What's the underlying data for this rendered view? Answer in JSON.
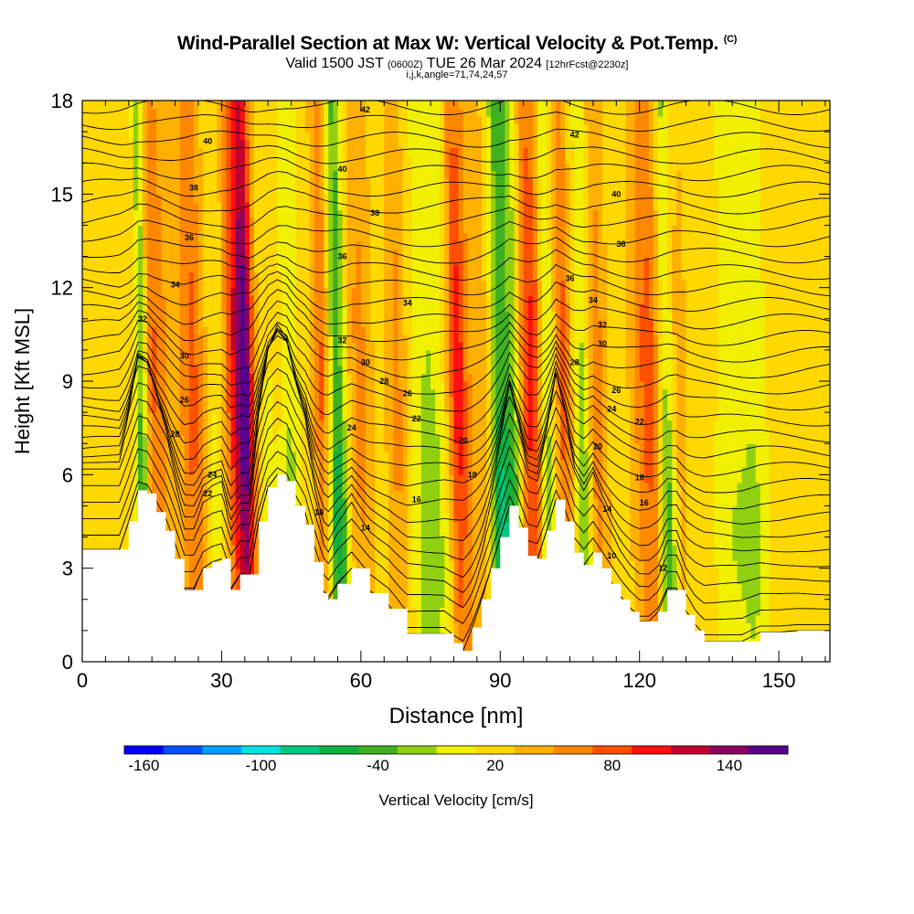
{
  "header": {
    "title": "Wind-Parallel Section at Max W: Vertical Velocity & Pot.Temp.",
    "title_unit": "(C)",
    "valid_prefix": "Valid 1500 JST",
    "valid_utc": "(0600Z)",
    "valid_date": "TUE 26 Mar 2024",
    "forecast": "[12hrFcst@2230z]",
    "indices": "i,j,k,angle=71,74,24,57"
  },
  "chart_data": {
    "type": "heatmap",
    "xlabel": "Distance [nm]",
    "ylabel": "Height [Kft MSL]",
    "xlim": [
      0,
      161
    ],
    "ylim": [
      0,
      18
    ],
    "x_ticks": [
      0,
      30,
      60,
      90,
      120,
      150
    ],
    "y_ticks": [
      0,
      3,
      6,
      9,
      12,
      15,
      18
    ],
    "colorbar": {
      "label": "Vertical Velocity [cm/s]",
      "ticks": [
        -160,
        -100,
        -40,
        20,
        80,
        140
      ],
      "range": [
        -170,
        170
      ],
      "colors": [
        "#0000ff",
        "#0050ff",
        "#00a0ff",
        "#00e0e0",
        "#00c880",
        "#10b040",
        "#40b020",
        "#90d010",
        "#f0f000",
        "#ffd800",
        "#ffb000",
        "#ff8800",
        "#ff5000",
        "#ff1010",
        "#c00030",
        "#8b0060",
        "#5a008c"
      ]
    },
    "terrain": [
      [
        0,
        3.6
      ],
      [
        4,
        3.6
      ],
      [
        8,
        3.6
      ],
      [
        10,
        4.5
      ],
      [
        12,
        5.5
      ],
      [
        14,
        5.4
      ],
      [
        16,
        4.8
      ],
      [
        18,
        4.2
      ],
      [
        20,
        3.3
      ],
      [
        22,
        2.3
      ],
      [
        24,
        2.3
      ],
      [
        26,
        3.0
      ],
      [
        28,
        3.2
      ],
      [
        30,
        3.3
      ],
      [
        32,
        2.3
      ],
      [
        34,
        2.8
      ],
      [
        36,
        2.8
      ],
      [
        38,
        4.5
      ],
      [
        40,
        5.6
      ],
      [
        42,
        6.0
      ],
      [
        44,
        5.8
      ],
      [
        46,
        5.0
      ],
      [
        48,
        4.4
      ],
      [
        50,
        3.2
      ],
      [
        52,
        2.2
      ],
      [
        53,
        2.0
      ],
      [
        55,
        2.5
      ],
      [
        58,
        3.0
      ],
      [
        62,
        2.2
      ],
      [
        66,
        1.7
      ],
      [
        70,
        0.9
      ],
      [
        74,
        0.9
      ],
      [
        78,
        0.9
      ],
      [
        80,
        0.6
      ],
      [
        82,
        0.35
      ],
      [
        84,
        1.1
      ],
      [
        86,
        2.0
      ],
      [
        88,
        3.0
      ],
      [
        90,
        4.0
      ],
      [
        92,
        5.0
      ],
      [
        94,
        4.3
      ],
      [
        96,
        3.4
      ],
      [
        98,
        3.3
      ],
      [
        100,
        4.2
      ],
      [
        102,
        5.2
      ],
      [
        104,
        4.5
      ],
      [
        106,
        3.5
      ],
      [
        108,
        3.1
      ],
      [
        110,
        3.5
      ],
      [
        112,
        3.0
      ],
      [
        114,
        2.5
      ],
      [
        116,
        2.0
      ],
      [
        118,
        1.6
      ],
      [
        120,
        1.3
      ],
      [
        122,
        1.3
      ],
      [
        124,
        1.6
      ],
      [
        126,
        2.3
      ],
      [
        128,
        2.3
      ],
      [
        130,
        1.5
      ],
      [
        132,
        1.0
      ],
      [
        134,
        0.65
      ],
      [
        138,
        0.65
      ],
      [
        142,
        0.65
      ],
      [
        146,
        0.95
      ],
      [
        150,
        0.95
      ],
      [
        154,
        1.0
      ],
      [
        158,
        1.0
      ],
      [
        161,
        1.0
      ]
    ],
    "updraft_columns": [
      {
        "x": 16,
        "w": 3.0,
        "v": 50
      },
      {
        "x": 24,
        "w": 2.8,
        "v": 55
      },
      {
        "x": 34,
        "w": 3.0,
        "v": 95
      },
      {
        "x": 35.5,
        "w": 1.6,
        "v": 70
      },
      {
        "x": 52,
        "w": 1.8,
        "v": 55
      },
      {
        "x": 60,
        "w": 2.5,
        "v": 35
      },
      {
        "x": 68,
        "w": 2.0,
        "v": 35
      },
      {
        "x": 81,
        "w": 2.2,
        "v": 85
      },
      {
        "x": 86,
        "w": 3.5,
        "v": 20
      },
      {
        "x": 97,
        "w": 3.0,
        "v": 75
      },
      {
        "x": 104,
        "w": 1.5,
        "v": 55
      },
      {
        "x": 111,
        "w": 2.0,
        "v": 40
      },
      {
        "x": 122,
        "w": 3.0,
        "v": 55
      },
      {
        "x": 127,
        "w": 3.0,
        "v": 30
      }
    ],
    "downdraft_columns": [
      {
        "x": 13,
        "w": 1.3,
        "v": -90
      },
      {
        "x": 29,
        "w": 2.5,
        "v": -25
      },
      {
        "x": 40,
        "w": 2.2,
        "v": -20
      },
      {
        "x": 45,
        "w": 2.0,
        "v": -40
      },
      {
        "x": 55,
        "w": 2.0,
        "v": -95
      },
      {
        "x": 74,
        "w": 3.0,
        "v": -40
      },
      {
        "x": 78,
        "w": 3.5,
        "v": -25
      },
      {
        "x": 90,
        "w": 2.0,
        "v": -100
      },
      {
        "x": 93,
        "w": 1.8,
        "v": -75
      },
      {
        "x": 100,
        "w": 1.5,
        "v": -70
      },
      {
        "x": 108,
        "w": 1.5,
        "v": -55
      },
      {
        "x": 126,
        "w": 1.8,
        "v": -95
      },
      {
        "x": 140,
        "w": 4.0,
        "v": -30
      },
      {
        "x": 145,
        "w": 3.0,
        "v": -30
      }
    ],
    "contour_labels": [
      {
        "text": "42",
        "x": 61,
        "y": 17.7
      },
      {
        "text": "42",
        "x": 106,
        "y": 16.9
      },
      {
        "text": "40",
        "x": 27,
        "y": 16.7
      },
      {
        "text": "40",
        "x": 56,
        "y": 15.8
      },
      {
        "text": "40",
        "x": 115,
        "y": 15.0
      },
      {
        "text": "38",
        "x": 24,
        "y": 15.2
      },
      {
        "text": "38",
        "x": 63,
        "y": 14.4
      },
      {
        "text": "38",
        "x": 116,
        "y": 13.4
      },
      {
        "text": "36",
        "x": 23,
        "y": 13.6
      },
      {
        "text": "36",
        "x": 56,
        "y": 13.0
      },
      {
        "text": "36",
        "x": 105,
        "y": 12.3
      },
      {
        "text": "34",
        "x": 20,
        "y": 12.1
      },
      {
        "text": "34",
        "x": 70,
        "y": 11.5
      },
      {
        "text": "34",
        "x": 110,
        "y": 11.6
      },
      {
        "text": "32",
        "x": 13,
        "y": 11.0
      },
      {
        "text": "32",
        "x": 56,
        "y": 10.3
      },
      {
        "text": "32",
        "x": 112,
        "y": 10.8
      },
      {
        "text": "30",
        "x": 22,
        "y": 9.8
      },
      {
        "text": "30",
        "x": 61,
        "y": 9.6
      },
      {
        "text": "30",
        "x": 112,
        "y": 10.2
      },
      {
        "text": "28",
        "x": 65,
        "y": 9.0
      },
      {
        "text": "28",
        "x": 106,
        "y": 9.6
      },
      {
        "text": "26",
        "x": 22,
        "y": 8.4
      },
      {
        "text": "26",
        "x": 70,
        "y": 8.6
      },
      {
        "text": "26",
        "x": 115,
        "y": 8.7
      },
      {
        "text": "24",
        "x": 58,
        "y": 7.5
      },
      {
        "text": "24",
        "x": 114,
        "y": 8.1
      },
      {
        "text": "22",
        "x": 72,
        "y": 7.8
      },
      {
        "text": "22",
        "x": 120,
        "y": 7.7
      },
      {
        "text": "28",
        "x": 20,
        "y": 7.3
      },
      {
        "text": "24",
        "x": 28,
        "y": 6.0
      },
      {
        "text": "22",
        "x": 27,
        "y": 5.4
      },
      {
        "text": "20",
        "x": 82,
        "y": 7.1
      },
      {
        "text": "20",
        "x": 111,
        "y": 6.9
      },
      {
        "text": "18",
        "x": 84,
        "y": 6.0
      },
      {
        "text": "18",
        "x": 120,
        "y": 5.9
      },
      {
        "text": "16",
        "x": 72,
        "y": 5.2
      },
      {
        "text": "16",
        "x": 121,
        "y": 5.1
      },
      {
        "text": "18",
        "x": 51,
        "y": 4.8
      },
      {
        "text": "14",
        "x": 61,
        "y": 4.3
      },
      {
        "text": "14",
        "x": 113,
        "y": 4.9
      },
      {
        "text": "10",
        "x": 114,
        "y": 3.4
      },
      {
        "text": "12",
        "x": 125,
        "y": 3.0
      }
    ]
  }
}
